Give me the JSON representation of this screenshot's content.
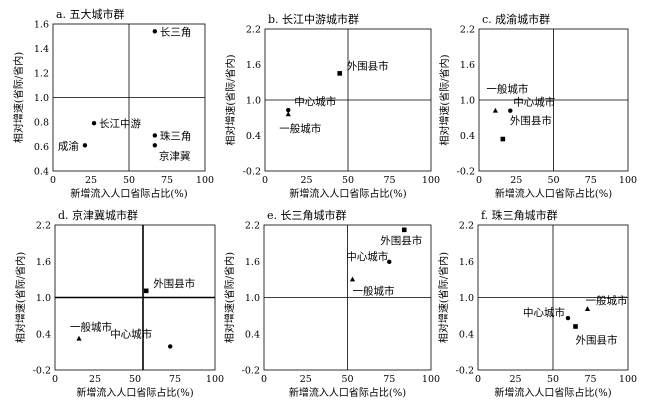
{
  "chart_data": [
    {
      "type": "scatter",
      "title": "a. 五大城市群",
      "xlabel": "新增流入人口省际占比(%)",
      "ylabel": "相对增速(省际/省内)",
      "xlim": [
        0,
        100
      ],
      "ylim": [
        0.4,
        1.6
      ],
      "xticks": [
        "0",
        "25",
        "50",
        "75",
        "100"
      ],
      "yticks": [
        "0.4",
        "0.6",
        "0.8",
        "1.0",
        "1.2",
        "1.4",
        "1.6"
      ],
      "ytick_values": [
        0.4,
        0.6,
        0.8,
        1.0,
        1.2,
        1.4,
        1.6
      ],
      "quadrant": {
        "x": 50,
        "y": 1.0
      },
      "points": [
        {
          "name": "长三角",
          "x": 67,
          "y": 1.54,
          "marker": "dot"
        },
        {
          "name": "长江中游",
          "x": 27,
          "y": 0.79,
          "marker": "dot"
        },
        {
          "name": "珠三角",
          "x": 67,
          "y": 0.69,
          "marker": "dot"
        },
        {
          "name": "成渝",
          "x": 21,
          "y": 0.61,
          "marker": "dot"
        },
        {
          "name": "京津冀",
          "x": 67,
          "y": 0.61,
          "marker": "dot"
        }
      ]
    },
    {
      "type": "scatter",
      "title": "b. 长江中游城市群",
      "xlabel": "新增流入人口省际占比(%)",
      "ylabel": "相对增速(省际/省内)",
      "xlim": [
        0,
        100
      ],
      "ylim": [
        -0.2,
        2.2
      ],
      "xticks": [
        "0",
        "25",
        "50",
        "75",
        "100"
      ],
      "yticks": [
        "-0.2",
        "0.4",
        "1.0",
        "1.6",
        "2.2"
      ],
      "ytick_values": [
        -0.2,
        0.4,
        1.0,
        1.6,
        2.2
      ],
      "quadrant": {
        "x": 50,
        "y": 1.0
      },
      "points": [
        {
          "name": "外围县市",
          "x": 45,
          "y": 1.45,
          "marker": "square"
        },
        {
          "name": "中心城市",
          "x": 14,
          "y": 0.83,
          "marker": "dot"
        },
        {
          "name": "一般城市",
          "x": 14,
          "y": 0.76,
          "marker": "triangle"
        }
      ]
    },
    {
      "type": "scatter",
      "title": "c. 成渝城市群",
      "xlabel": "新增流入人口省际占比(%)",
      "ylabel": "相对增速(省际/省内)",
      "xlim": [
        0,
        100
      ],
      "ylim": [
        -0.2,
        2.2
      ],
      "xticks": [
        "0",
        "25",
        "50",
        "75",
        "100"
      ],
      "yticks": [
        "-0.2",
        "0.4",
        "1.0",
        "1.6",
        "2.2"
      ],
      "ytick_values": [
        -0.2,
        0.4,
        1.0,
        1.6,
        2.2
      ],
      "quadrant": {
        "x": 50,
        "y": 1.0
      },
      "points": [
        {
          "name": "一般城市",
          "x": 11,
          "y": 0.82,
          "marker": "triangle"
        },
        {
          "name": "中心城市",
          "x": 21,
          "y": 0.82,
          "marker": "dot"
        },
        {
          "name": "外围县市",
          "x": 16,
          "y": 0.34,
          "marker": "square"
        }
      ]
    },
    {
      "type": "scatter",
      "title": "d. 京津冀城市群",
      "xlabel": "新增流入人口省际占比(%)",
      "ylabel": "相对增速(省际/省内)",
      "xlim": [
        0,
        100
      ],
      "ylim": [
        -0.2,
        2.2
      ],
      "xticks": [
        "0",
        "25",
        "50",
        "75",
        "100"
      ],
      "yticks": [
        "-0.2",
        "0.4",
        "1.0",
        "1.6",
        "2.2"
      ],
      "ytick_values": [
        -0.2,
        0.4,
        1.0,
        1.6,
        2.2
      ],
      "quadrant": {
        "x": 55,
        "y": 1.0,
        "bold": true
      },
      "points": [
        {
          "name": "外围县市",
          "x": 57,
          "y": 1.11,
          "marker": "square"
        },
        {
          "name": "一般城市",
          "x": 15,
          "y": 0.32,
          "marker": "triangle"
        },
        {
          "name": "中心城市",
          "x": 72,
          "y": 0.19,
          "marker": "dot"
        }
      ]
    },
    {
      "type": "scatter",
      "title": "e. 长三角城市群",
      "xlabel": "新增流入人口省际占比(%)",
      "ylabel": "相对增速(省际/省内)",
      "xlim": [
        0,
        100
      ],
      "ylim": [
        -0.2,
        2.2
      ],
      "xticks": [
        "0",
        "25",
        "50",
        "75",
        "100"
      ],
      "yticks": [
        "-0.2",
        "0.4",
        "1.0",
        "1.6",
        "2.2"
      ],
      "ytick_values": [
        -0.2,
        0.4,
        1.0,
        1.6,
        2.2
      ],
      "quadrant": {
        "x": 50,
        "y": 1.0
      },
      "points": [
        {
          "name": "外围县市",
          "x": 84,
          "y": 2.12,
          "marker": "square"
        },
        {
          "name": "中心城市",
          "x": 75,
          "y": 1.59,
          "marker": "dot"
        },
        {
          "name": "一般城市",
          "x": 53,
          "y": 1.3,
          "marker": "triangle"
        }
      ]
    },
    {
      "type": "scatter",
      "title": "f. 珠三角城市群",
      "xlabel": "新增流入人口省际占比(%)",
      "ylabel": "相对增速(省际/省内)",
      "xlim": [
        0,
        100
      ],
      "ylim": [
        -0.2,
        2.2
      ],
      "xticks": [
        "0",
        "25",
        "50",
        "75",
        "100"
      ],
      "yticks": [
        "-0.2",
        "0.4",
        "1.0",
        "1.6",
        "2.2"
      ],
      "ytick_values": [
        -0.2,
        0.4,
        1.0,
        1.6,
        2.2
      ],
      "quadrant": {
        "x": 50,
        "y": 1.0
      },
      "points": [
        {
          "name": "一般城市",
          "x": 73,
          "y": 0.81,
          "marker": "triangle"
        },
        {
          "name": "中心城市",
          "x": 60,
          "y": 0.66,
          "marker": "dot"
        },
        {
          "name": "外围县市",
          "x": 65,
          "y": 0.52,
          "marker": "square"
        }
      ]
    }
  ]
}
